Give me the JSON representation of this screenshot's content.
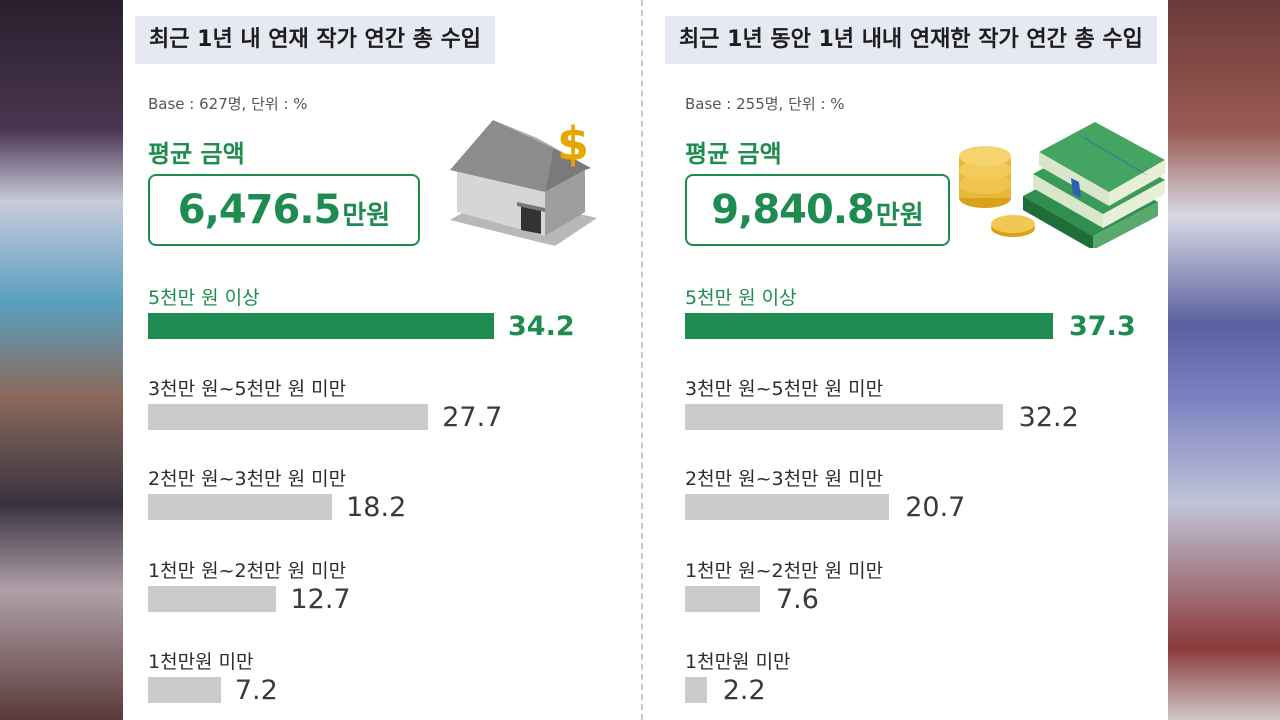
{
  "chart_data": [
    {
      "type": "bar",
      "title": "최근 1년 내 연재 작가 연간 총 수입",
      "base_note": "Base : 627명, 단위 : %",
      "average_label": "평균 금액",
      "average_value": "6,476.5",
      "average_unit": "만원",
      "categories": [
        "5천만 원 이상",
        "3천만 원~5천만 원 미만",
        "2천만 원~3천만 원 미만",
        "1천만 원~2천만 원 미만",
        "1천만원 미만"
      ],
      "values": [
        34.2,
        27.7,
        18.2,
        12.7,
        7.2
      ],
      "highlight_index": 0,
      "colors": {
        "highlight": "#1e8c50",
        "bar": "#cbcbcb"
      },
      "icon": "bank-dollar-icon"
    },
    {
      "type": "bar",
      "title": "최근 1년 동안 1년 내내 연재한 작가 연간 총 수입",
      "base_note": "Base : 255명, 단위 : %",
      "average_label": "평균 금액",
      "average_value": "9,840.8",
      "average_unit": "만원",
      "categories": [
        "5천만 원 이상",
        "3천만 원~5천만 원 미만",
        "2천만 원~3천만 원 미만",
        "1천만 원~2천만 원 미만",
        "1천만원 미만"
      ],
      "values": [
        37.3,
        32.2,
        20.7,
        7.6,
        2.2
      ],
      "highlight_index": 0,
      "colors": {
        "highlight": "#1e8c50",
        "bar": "#cbcbcb"
      },
      "icon": "money-stack-coins-icon"
    }
  ]
}
